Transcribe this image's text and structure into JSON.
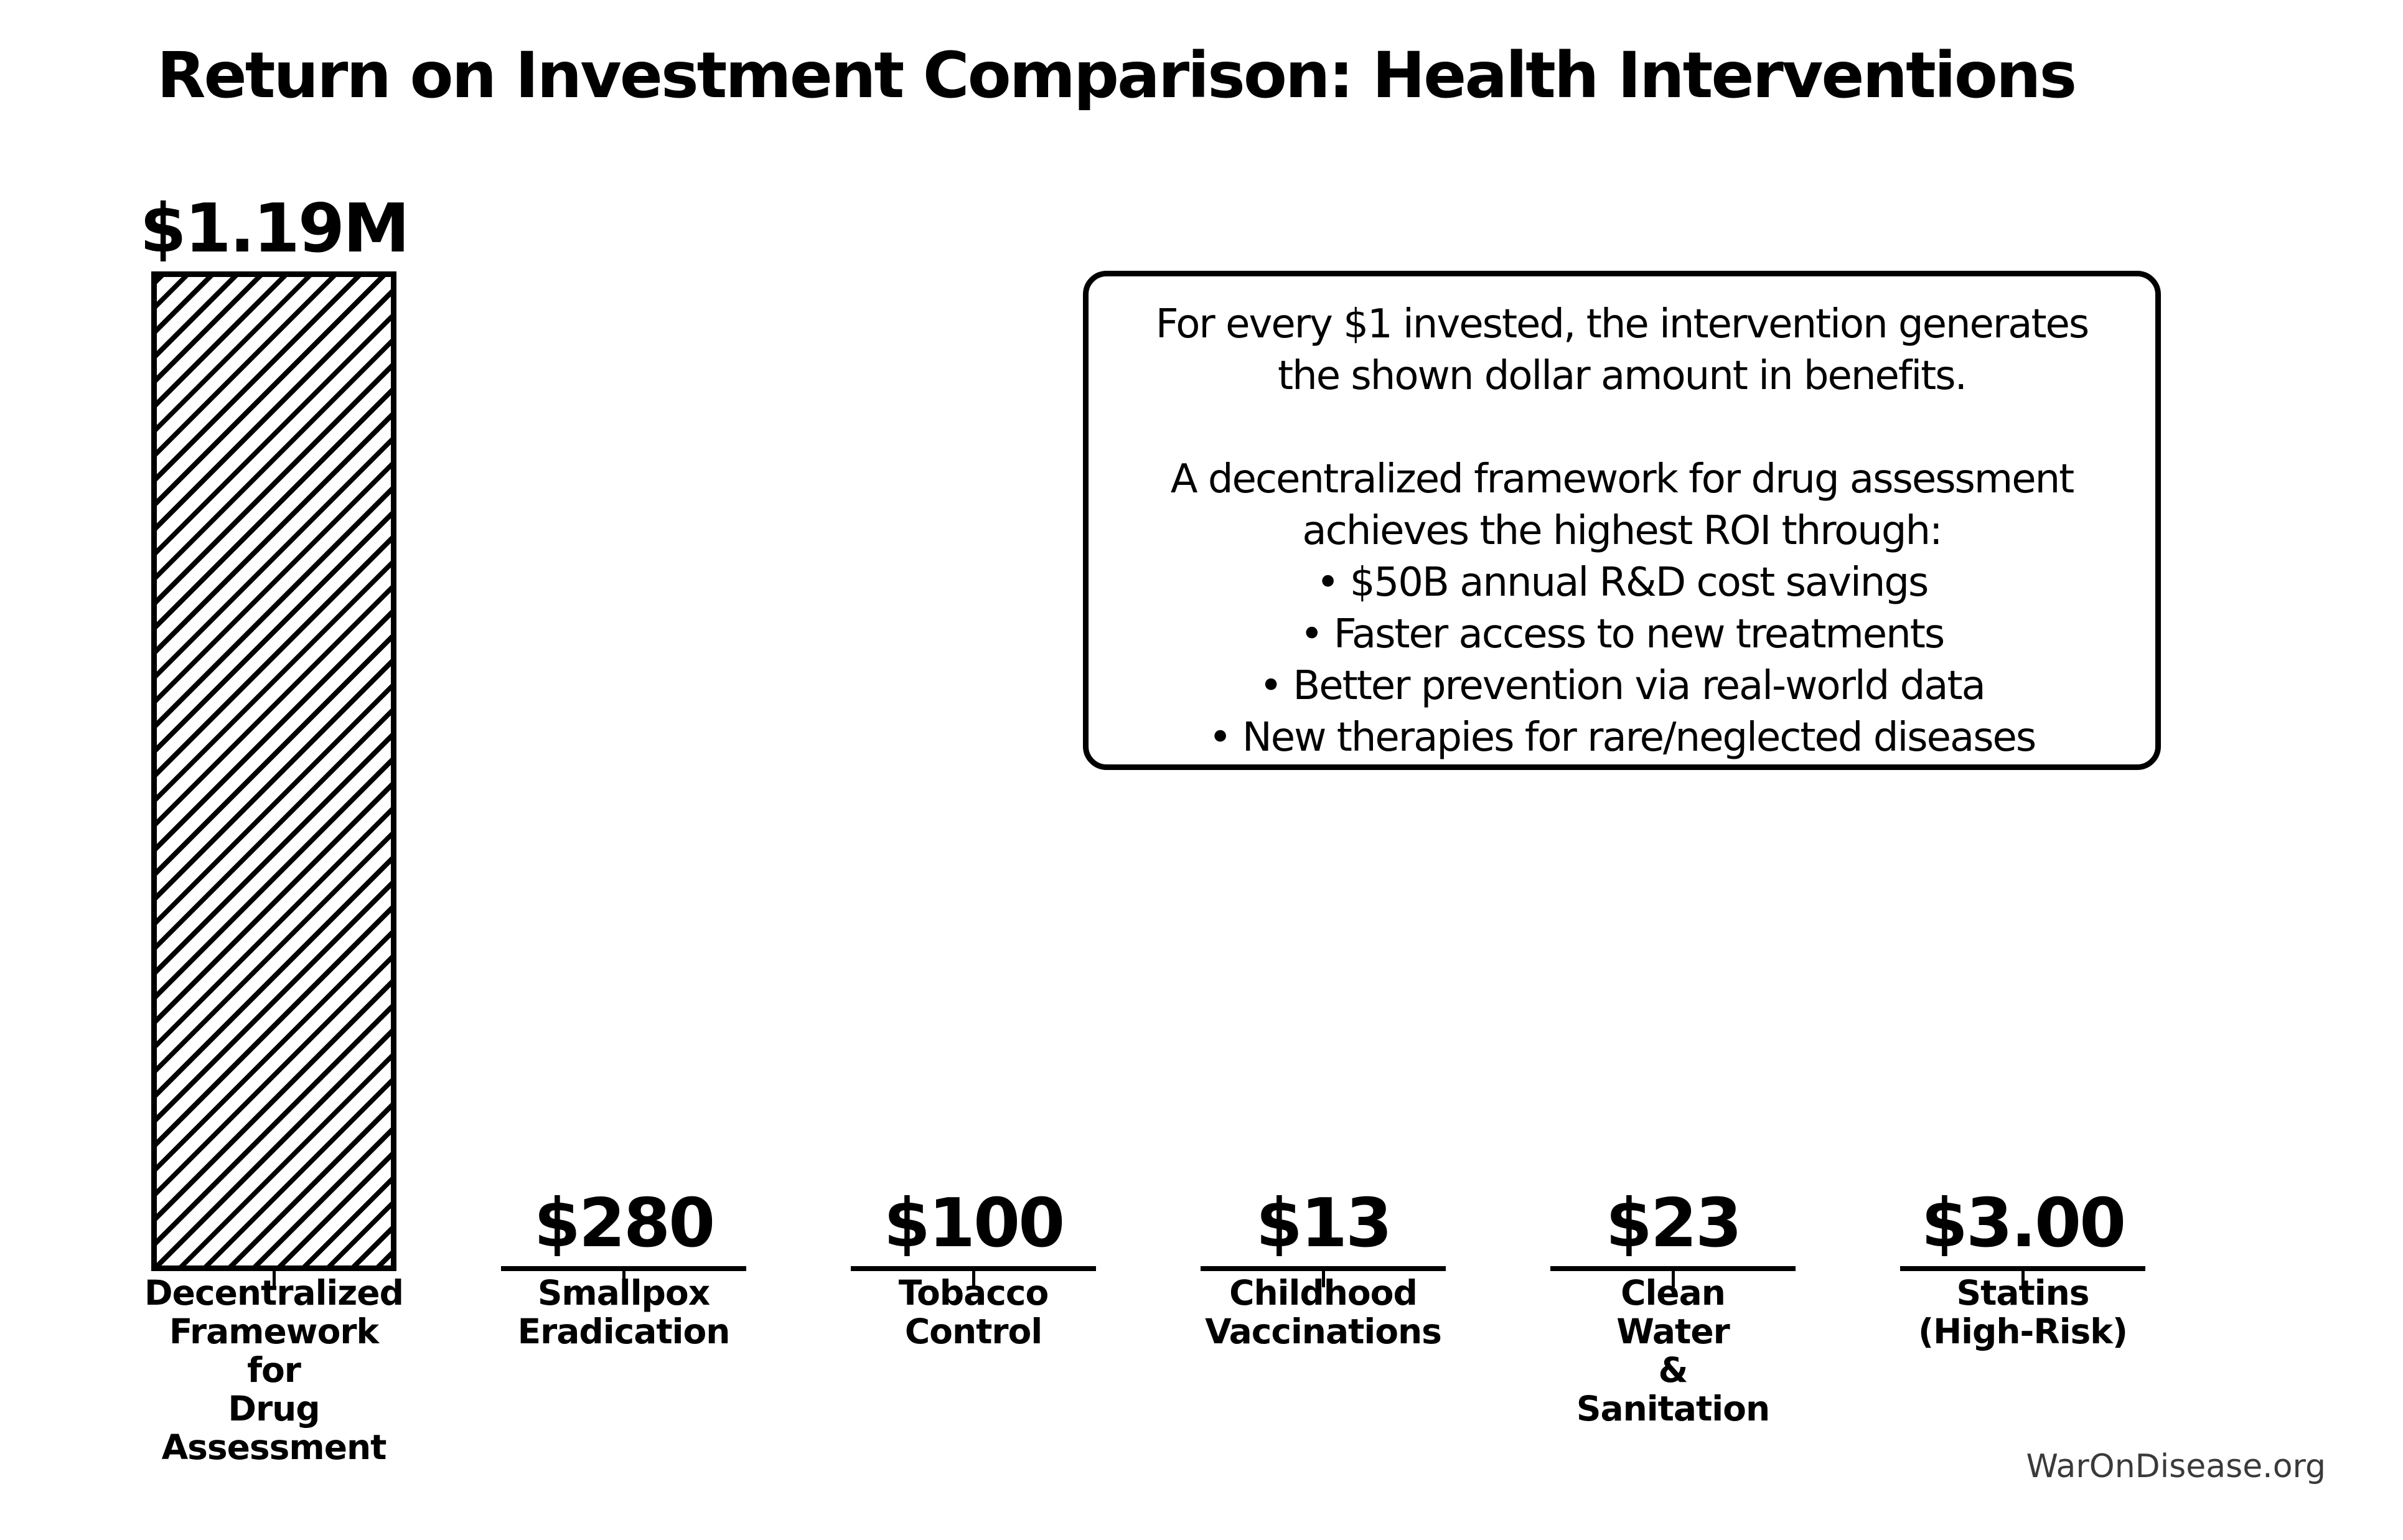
{
  "chart_data": {
    "type": "bar",
    "title": "Return on Investment Comparison: Health Interventions",
    "categories": [
      "Decentralized Framework for Drug Assessment",
      "Smallpox Eradication",
      "Tobacco Control",
      "Childhood Vaccinations",
      "Clean Water & Sanitation",
      "Statins (High-Risk)"
    ],
    "values": [
      1190000,
      280,
      100,
      13,
      23,
      3
    ],
    "value_labels": [
      "$1.19M",
      "$280",
      "$100",
      "$13",
      "$23",
      "$3.00"
    ],
    "ylim": [
      0,
      1190000
    ],
    "grid": false,
    "legend_position": "none",
    "bars": [
      {
        "category_multiline": "Decentralized\nFramework\nfor\nDrug\nAssessment",
        "value": 1190000,
        "value_label": "$1.19M",
        "hatch": "diagonal"
      },
      {
        "category_multiline": "Smallpox\nEradication",
        "value": 280,
        "value_label": "$280",
        "hatch": "none"
      },
      {
        "category_multiline": "Tobacco\nControl",
        "value": 100,
        "value_label": "$100",
        "hatch": "none"
      },
      {
        "category_multiline": "Childhood\nVaccinations",
        "value": 13,
        "value_label": "$13",
        "hatch": "none"
      },
      {
        "category_multiline": "Clean\nWater\n&\nSanitation",
        "value": 23,
        "value_label": "$23",
        "hatch": "none"
      },
      {
        "category_multiline": "Statins\n(High-Risk)",
        "value": 3,
        "value_label": "$3.00",
        "hatch": "none"
      }
    ]
  },
  "annotation": {
    "text": "For every $1 invested, the intervention generates\nthe shown dollar amount in benefits.\n\nA decentralized framework for drug assessment\nachieves the highest ROI through:\n• $50B annual R&D cost savings\n• Faster access to new treatments\n• Better prevention via real-world data\n• New therapies for rare/neglected diseases"
  },
  "watermark": "WarOnDisease.org",
  "colors": {
    "background": "#ffffff",
    "bar_edge": "#000000",
    "bar_fill": "#ffffff",
    "text": "#000000",
    "watermark": "#3a3a3a"
  }
}
